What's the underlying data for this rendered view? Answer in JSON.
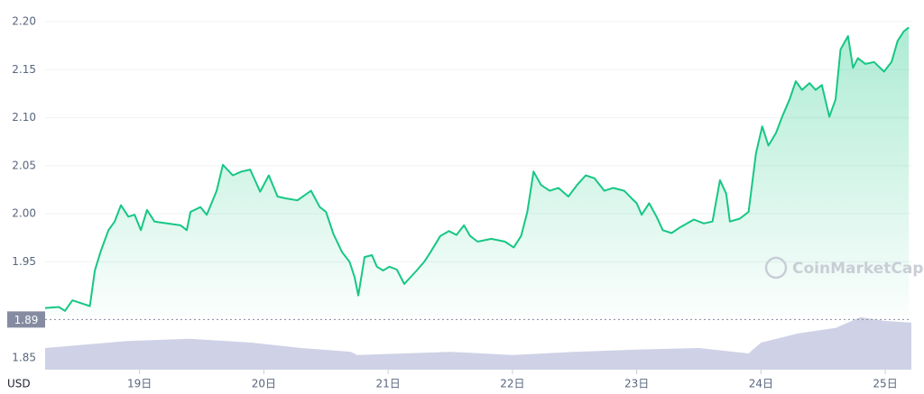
{
  "chart_data": {
    "type": "line",
    "xlim": [
      18.24,
      25.21
    ],
    "xticks": [
      {
        "value": 19,
        "label": "19日"
      },
      {
        "value": 20,
        "label": "20日"
      },
      {
        "value": 21,
        "label": "21日"
      },
      {
        "value": 22,
        "label": "22日"
      },
      {
        "value": 23,
        "label": "23日"
      },
      {
        "value": 24,
        "label": "24日"
      },
      {
        "value": 25,
        "label": "25日"
      }
    ],
    "ylim": [
      1.85,
      2.2
    ],
    "yticks": [
      1.85,
      1.95,
      {
        "value": 2,
        "label": "2.00"
      },
      2.05,
      {
        "value": 2.1,
        "label": "2.10"
      },
      2.15,
      {
        "value": 2.2,
        "label": "2.20"
      }
    ],
    "grid": true,
    "series": [
      {
        "color": "#16c784",
        "x": [
          18.24,
          18.35,
          18.4,
          18.46,
          18.53,
          18.6,
          18.64,
          18.69,
          18.75,
          18.8,
          18.85,
          18.91,
          18.96,
          19.01,
          19.06,
          19.12,
          19.22,
          19.33,
          19.38,
          19.41,
          19.49,
          19.54,
          19.62,
          19.67,
          19.75,
          19.82,
          19.89,
          19.97,
          20.04,
          20.11,
          20.18,
          20.27,
          20.38,
          20.45,
          20.5,
          20.56,
          20.63,
          20.69,
          20.73,
          20.76,
          20.81,
          20.87,
          20.91,
          20.96,
          21.01,
          21.07,
          21.13,
          21.18,
          21.23,
          21.29,
          21.34,
          21.42,
          21.49,
          21.55,
          21.61,
          21.66,
          21.72,
          21.83,
          21.94,
          22.01,
          22.07,
          22.12,
          22.17,
          22.23,
          22.3,
          22.37,
          22.45,
          22.52,
          22.59,
          22.66,
          22.74,
          22.81,
          22.9,
          22.96,
          23.0,
          23.04,
          23.1,
          23.16,
          23.21,
          23.28,
          23.35,
          23.46,
          23.54,
          23.61,
          23.67,
          23.72,
          23.75,
          23.83,
          23.9,
          23.96,
          24.01,
          24.06,
          24.12,
          24.17,
          24.23,
          24.28,
          24.33,
          24.39,
          24.44,
          24.49,
          24.55,
          24.6,
          24.64,
          24.7,
          24.74,
          24.78,
          24.84,
          24.91,
          24.99,
          25.05,
          25.1,
          25.15,
          25.19
        ],
        "values": [
          1.902,
          1.903,
          1.899,
          1.91,
          1.907,
          1.904,
          1.941,
          1.962,
          1.983,
          1.992,
          2.009,
          1.997,
          1.999,
          1.983,
          2.004,
          1.992,
          1.99,
          1.988,
          1.983,
          2.002,
          2.007,
          1.999,
          2.024,
          2.051,
          2.04,
          2.044,
          2.046,
          2.023,
          2.04,
          2.018,
          2.016,
          2.014,
          2.024,
          2.007,
          2.002,
          1.979,
          1.96,
          1.95,
          1.934,
          1.915,
          1.955,
          1.957,
          1.945,
          1.941,
          1.945,
          1.942,
          1.927,
          1.934,
          1.941,
          1.95,
          1.96,
          1.977,
          1.982,
          1.978,
          1.988,
          1.977,
          1.971,
          1.974,
          1.971,
          1.965,
          1.977,
          2.002,
          2.044,
          2.03,
          2.024,
          2.027,
          2.018,
          2.03,
          2.04,
          2.037,
          2.024,
          2.027,
          2.024,
          2.016,
          2.011,
          1.999,
          2.011,
          1.997,
          1.983,
          1.98,
          1.986,
          1.994,
          1.99,
          1.992,
          2.035,
          2.021,
          1.992,
          1.995,
          2.002,
          2.063,
          2.091,
          2.071,
          2.084,
          2.101,
          2.119,
          2.138,
          2.129,
          2.136,
          2.129,
          2.134,
          2.101,
          2.119,
          2.171,
          2.185,
          2.152,
          2.162,
          2.156,
          2.158,
          2.148,
          2.158,
          2.18,
          2.19,
          2.194
        ]
      }
    ],
    "volume": {
      "color": "#cfd2e6",
      "ylim": [
        0,
        100
      ],
      "x": [
        18.24,
        18.6,
        18.9,
        19.4,
        19.9,
        20.3,
        20.7,
        20.75,
        21.5,
        22.0,
        22.5,
        23.0,
        23.5,
        23.9,
        24.0,
        24.3,
        24.6,
        24.8,
        25.0,
        25.21
      ],
      "values": [
        40,
        47,
        53,
        57,
        50,
        40,
        33,
        27,
        33,
        27,
        33,
        37,
        40,
        30,
        50,
        67,
        77,
        97,
        90,
        87
      ]
    },
    "price_marker": 1.89,
    "currency_label": "USD",
    "watermark": "CoinMarketCap"
  }
}
